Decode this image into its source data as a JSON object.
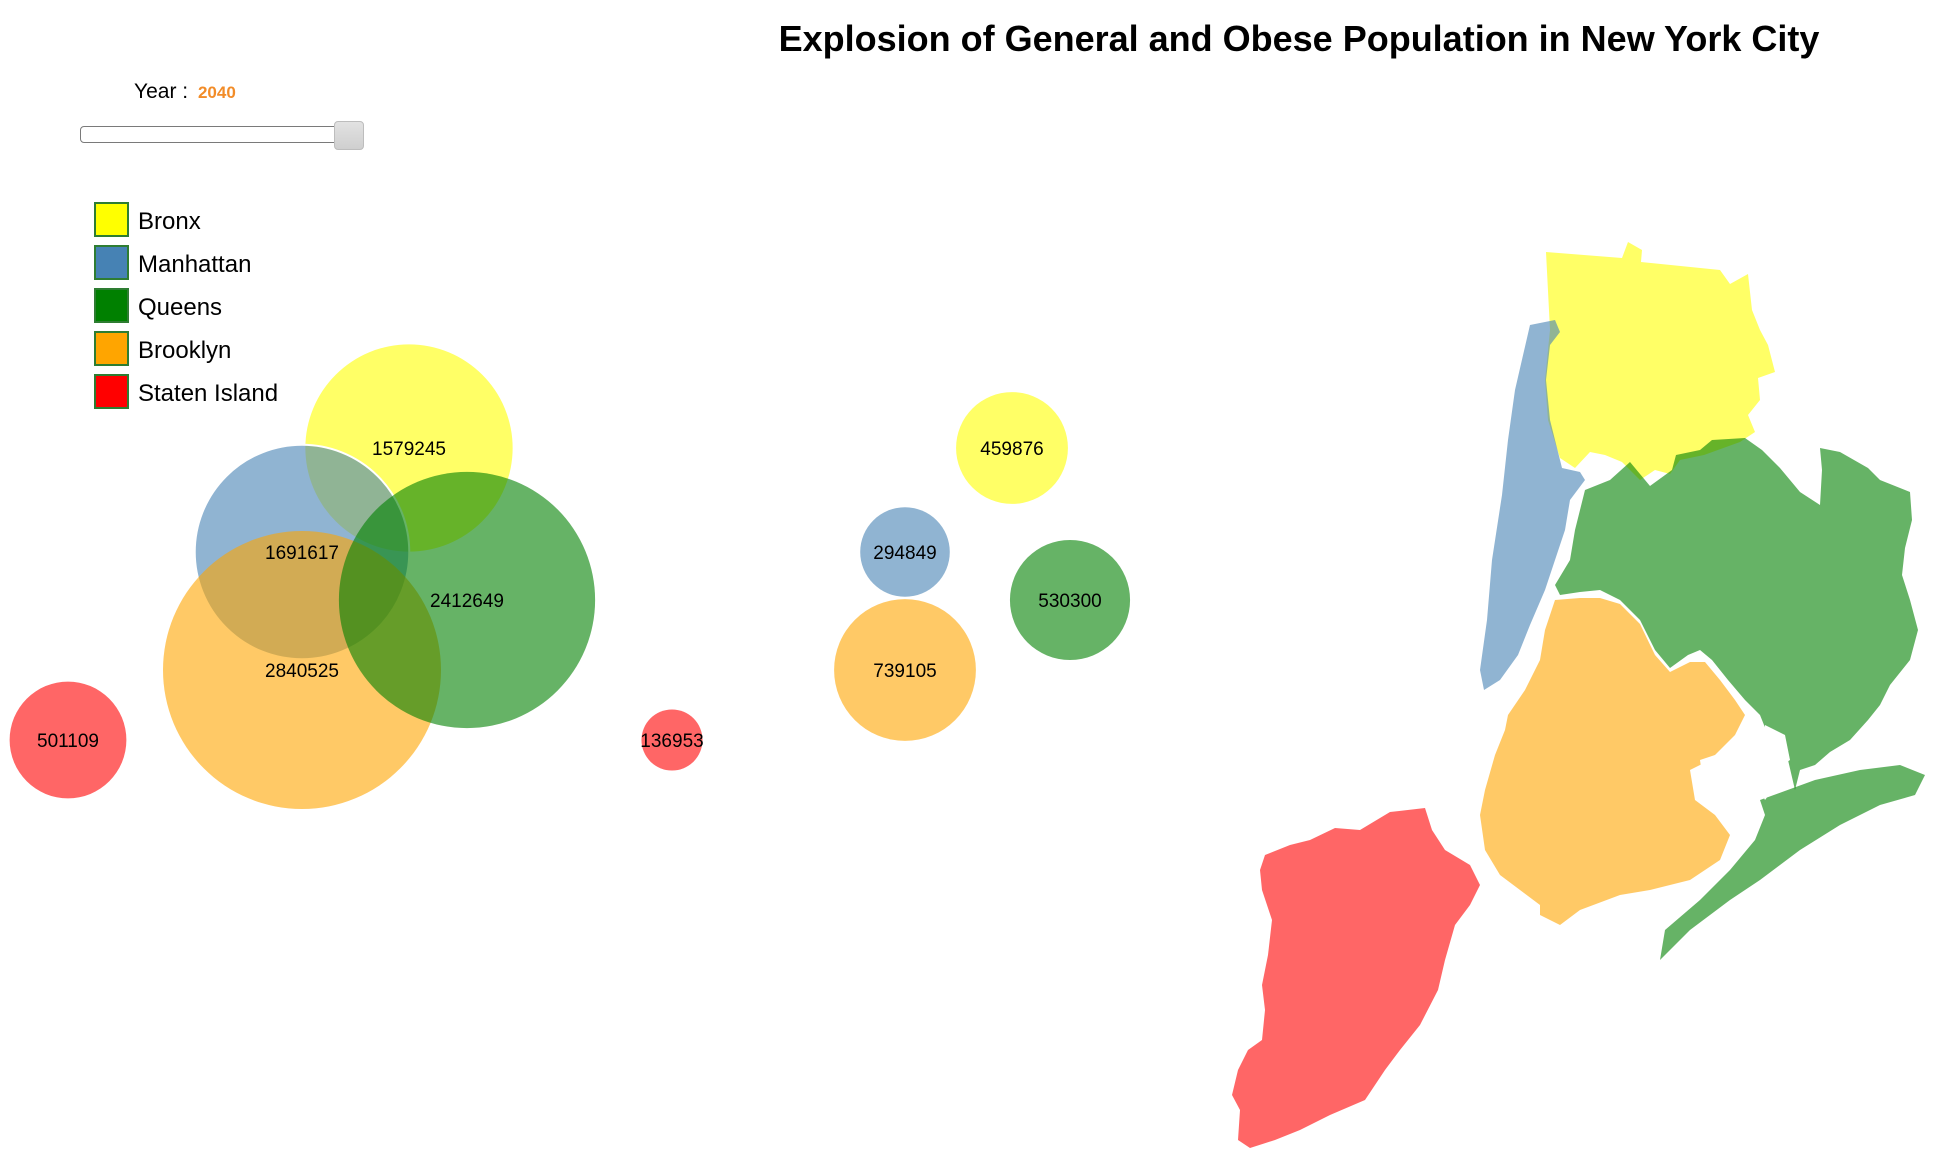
{
  "title": "Explosion of General and Obese Population in New York City",
  "year_control": {
    "label": "Year :",
    "value": "2040",
    "value_color": "#f28c28",
    "slider_fraction": 1.0
  },
  "legend": [
    {
      "label": "Bronx",
      "color": "#ffff00"
    },
    {
      "label": "Manhattan",
      "color": "#4682b4"
    },
    {
      "label": "Queens",
      "color": "#008000"
    },
    {
      "label": "Brooklyn",
      "color": "#ffa500"
    },
    {
      "label": "Staten Island",
      "color": "#ff0000"
    }
  ],
  "chart_data": {
    "type": "bubble",
    "title": "Explosion of General and Obese Population in New York City",
    "year": "2040",
    "series": [
      {
        "group": "general",
        "points": [
          {
            "borough": "Bronx",
            "value": 1579245
          },
          {
            "borough": "Manhattan",
            "value": 1691617
          },
          {
            "borough": "Queens",
            "value": 2412649
          },
          {
            "borough": "Brooklyn",
            "value": 2840525
          },
          {
            "borough": "Staten Island",
            "value": 501109
          }
        ]
      },
      {
        "group": "obese",
        "points": [
          {
            "borough": "Bronx",
            "value": 459876
          },
          {
            "borough": "Manhattan",
            "value": 294849
          },
          {
            "borough": "Queens",
            "value": 530300
          },
          {
            "borough": "Brooklyn",
            "value": 739105
          },
          {
            "borough": "Staten Island",
            "value": 136953
          }
        ]
      }
    ],
    "colors": {
      "Bronx": "#ffff00",
      "Manhattan": "#4682b4",
      "Queens": "#008000",
      "Brooklyn": "#ffa500",
      "Staten Island": "#ff0000"
    },
    "bubble_opacity": 0.6,
    "map_regions": [
      "Bronx",
      "Manhattan",
      "Queens",
      "Brooklyn",
      "Staten Island"
    ]
  }
}
